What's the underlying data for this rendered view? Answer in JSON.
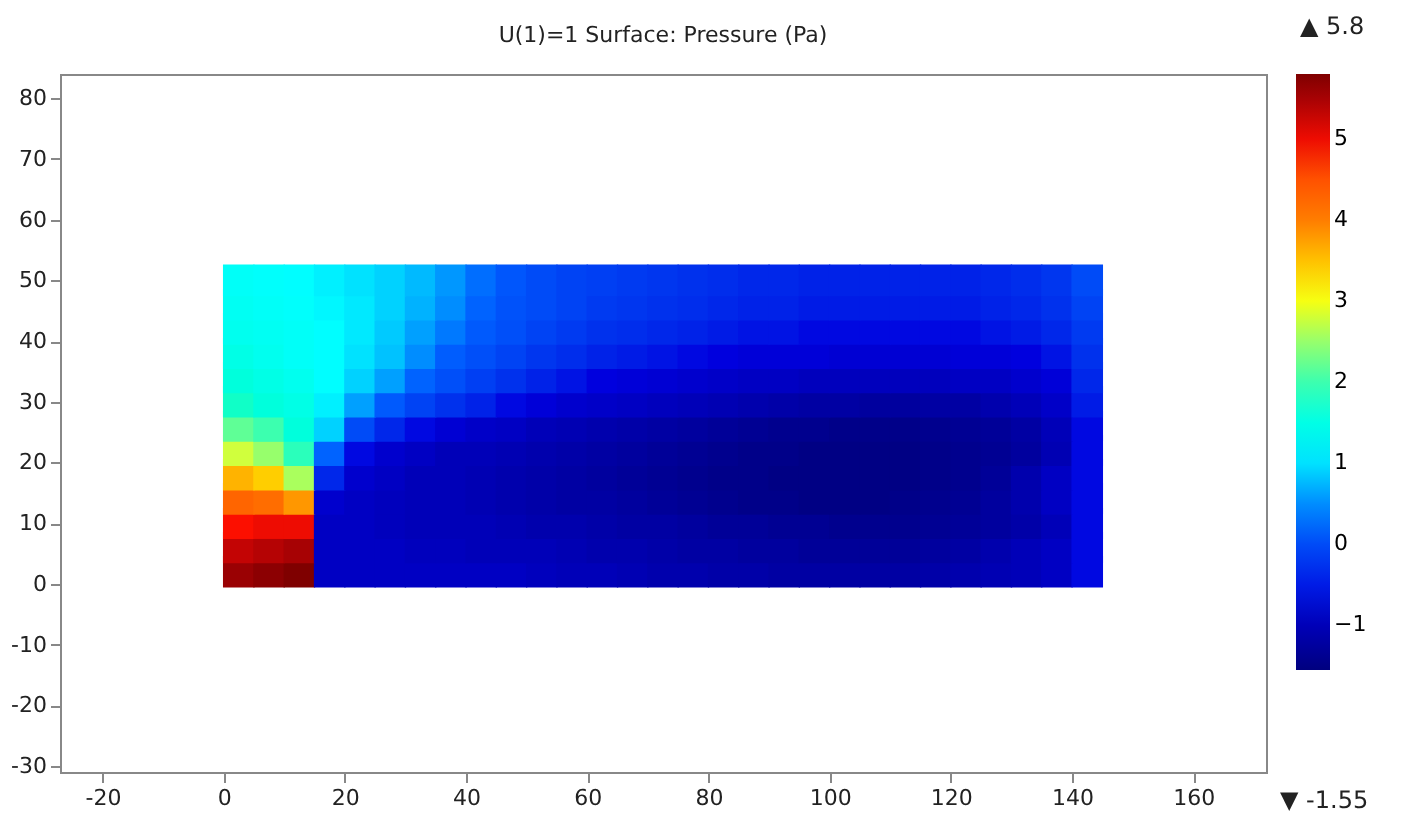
{
  "chart_data": {
    "type": "scatter",
    "title": "U(1)=1   Surface: Pressure (Pa)",
    "marker": "square",
    "grid": false,
    "xlim": [
      -27,
      172
    ],
    "xticks": [
      -20,
      0,
      20,
      40,
      60,
      80,
      100,
      120,
      140,
      160
    ],
    "ylim": [
      -31,
      84
    ],
    "yticks": [
      -30,
      -20,
      -10,
      0,
      10,
      20,
      30,
      40,
      50,
      60,
      70,
      80
    ],
    "clim": [
      -1.55,
      5.8
    ],
    "cticks": [
      -1,
      0,
      1,
      2,
      3,
      4,
      5
    ],
    "annotations": [
      "▲ 5.8",
      "▼ -1.55"
    ],
    "x": [
      2.5,
      7.5,
      12.5,
      17.5,
      22.5,
      27.5,
      32.5,
      37.5,
      42.5,
      47.5,
      52.5,
      57.5,
      62.5,
      67.5,
      72.5,
      77.5,
      82.5,
      87.5,
      92.5,
      97.5,
      102.5,
      107.5,
      112.5,
      117.5,
      122.5,
      127.5,
      132.5,
      137.5,
      142.5,
      2.5,
      7.5,
      12.5,
      17.5,
      22.5,
      27.5,
      32.5,
      37.5,
      42.5,
      47.5,
      52.5,
      57.5,
      62.5,
      67.5,
      72.5,
      77.5,
      82.5,
      87.5,
      92.5,
      97.5,
      102.5,
      107.5,
      112.5,
      117.5,
      122.5,
      127.5,
      132.5,
      137.5,
      142.5,
      2.5,
      7.5,
      12.5,
      17.5,
      22.5,
      27.5,
      32.5,
      37.5,
      42.5,
      47.5,
      52.5,
      57.5,
      62.5,
      67.5,
      72.5,
      77.5,
      82.5,
      87.5,
      92.5,
      97.5,
      102.5,
      107.5,
      112.5,
      117.5,
      122.5,
      127.5,
      132.5,
      137.5,
      142.5,
      2.5,
      7.5,
      12.5,
      17.5,
      22.5,
      27.5,
      32.5,
      37.5,
      42.5,
      47.5,
      52.5,
      57.5,
      62.5,
      67.5,
      72.5,
      77.5,
      82.5,
      87.5,
      92.5,
      97.5,
      102.5,
      107.5,
      112.5,
      117.5,
      122.5,
      127.5,
      132.5,
      137.5,
      142.5,
      2.5,
      7.5,
      12.5,
      17.5,
      22.5,
      27.5,
      32.5,
      37.5,
      42.5,
      47.5,
      52.5,
      57.5,
      62.5,
      67.5,
      72.5,
      77.5,
      82.5,
      87.5,
      92.5,
      97.5,
      102.5,
      107.5,
      112.5,
      117.5,
      122.5,
      127.5,
      132.5,
      137.5,
      142.5,
      2.5,
      7.5,
      12.5,
      17.5,
      22.5,
      27.5,
      32.5,
      37.5,
      42.5,
      47.5,
      52.5,
      57.5,
      62.5,
      67.5,
      72.5,
      77.5,
      82.5,
      87.5,
      92.5,
      97.5,
      102.5,
      107.5,
      112.5,
      117.5,
      122.5,
      127.5,
      132.5,
      137.5,
      142.5,
      2.5,
      7.5,
      12.5,
      17.5,
      22.5,
      27.5,
      32.5,
      37.5,
      42.5,
      47.5,
      52.5,
      57.5,
      62.5,
      67.5,
      72.5,
      77.5,
      82.5,
      87.5,
      92.5,
      97.5,
      102.5,
      107.5,
      112.5,
      117.5,
      122.5,
      127.5,
      132.5,
      137.5,
      142.5,
      2.5,
      7.5,
      12.5,
      17.5,
      22.5,
      27.5,
      32.5,
      37.5,
      42.5,
      47.5,
      52.5,
      57.5,
      62.5,
      67.5,
      72.5,
      77.5,
      82.5,
      87.5,
      92.5,
      97.5,
      102.5,
      107.5,
      112.5,
      117.5,
      122.5,
      127.5,
      132.5,
      137.5,
      142.5,
      2.5,
      7.5,
      12.5,
      17.5,
      22.5,
      27.5,
      32.5,
      37.5,
      42.5,
      47.5,
      52.5,
      57.5,
      62.5,
      67.5,
      72.5,
      77.5,
      82.5,
      87.5,
      92.5,
      97.5,
      102.5,
      107.5,
      112.5,
      117.5,
      122.5,
      127.5,
      132.5,
      137.5,
      142.5,
      2.5,
      7.5,
      12.5,
      17.5,
      22.5,
      27.5,
      32.5,
      37.5,
      42.5,
      47.5,
      52.5,
      57.5,
      62.5,
      67.5,
      72.5,
      77.5,
      82.5,
      87.5,
      92.5,
      97.5,
      102.5,
      107.5,
      112.5,
      117.5,
      122.5,
      127.5,
      132.5,
      137.5,
      142.5,
      2.5,
      7.5,
      12.5,
      17.5,
      22.5,
      27.5,
      32.5,
      37.5,
      42.5,
      47.5,
      52.5,
      57.5,
      62.5,
      67.5,
      72.5,
      77.5,
      82.5,
      87.5,
      92.5,
      97.5,
      102.5,
      107.5,
      112.5,
      117.5,
      122.5,
      127.5,
      132.5,
      137.5,
      142.5,
      2.5,
      7.5,
      12.5,
      17.5,
      22.5,
      27.5,
      32.5,
      37.5,
      42.5,
      47.5,
      52.5,
      57.5,
      62.5,
      67.5,
      72.5,
      77.5,
      82.5,
      87.5,
      92.5,
      97.5,
      102.5,
      107.5,
      112.5,
      117.5,
      122.5,
      127.5,
      132.5,
      137.5,
      142.5,
      2.5,
      7.5,
      12.5,
      17.5,
      22.5,
      27.5,
      32.5,
      37.5,
      42.5,
      47.5,
      52.5,
      57.5,
      62.5,
      67.5,
      72.5,
      77.5,
      82.5,
      87.5,
      92.5,
      97.5,
      102.5,
      107.5,
      112.5,
      117.5,
      122.5,
      127.5,
      132.5,
      137.5,
      142.5
    ],
    "values": [
      2,
      2,
      2,
      2,
      2,
      2,
      2,
      2,
      2,
      2,
      2,
      2,
      2,
      2,
      2,
      2,
      2,
      2,
      2,
      2,
      2,
      2,
      2,
      2,
      2,
      2,
      2,
      2,
      2,
      6,
      6,
      6,
      6,
      6,
      6,
      6,
      6,
      6,
      6,
      6,
      6,
      6,
      6,
      6,
      6,
      6,
      6,
      6,
      6,
      6,
      6,
      6,
      6,
      6,
      6,
      6,
      6,
      6,
      10,
      10,
      10,
      10,
      10,
      10,
      10,
      10,
      10,
      10,
      10,
      10,
      10,
      10,
      10,
      10,
      10,
      10,
      10,
      10,
      10,
      10,
      10,
      10,
      10,
      10,
      10,
      10,
      10,
      14,
      14,
      14,
      14,
      14,
      14,
      14,
      14,
      14,
      14,
      14,
      14,
      14,
      14,
      14,
      14,
      14,
      14,
      14,
      14,
      14,
      14,
      14,
      14,
      14,
      14,
      14,
      14,
      14,
      18,
      18,
      18,
      18,
      18,
      18,
      18,
      18,
      18,
      18,
      18,
      18,
      18,
      18,
      18,
      18,
      18,
      18,
      18,
      18,
      18,
      18,
      18,
      18,
      18,
      18,
      18,
      18,
      18,
      22,
      22,
      22,
      22,
      22,
      22,
      22,
      22,
      22,
      22,
      22,
      22,
      22,
      22,
      22,
      22,
      22,
      22,
      22,
      22,
      22,
      22,
      22,
      22,
      22,
      22,
      22,
      22,
      22,
      26,
      26,
      26,
      26,
      26,
      26,
      26,
      26,
      26,
      26,
      26,
      26,
      26,
      26,
      26,
      26,
      26,
      26,
      26,
      26,
      26,
      26,
      26,
      26,
      26,
      26,
      26,
      26,
      26,
      30,
      30,
      30,
      30,
      30,
      30,
      30,
      30,
      30,
      30,
      30,
      30,
      30,
      30,
      30,
      30,
      30,
      30,
      30,
      30,
      30,
      30,
      30,
      30,
      30,
      30,
      30,
      30,
      30,
      34,
      34,
      34,
      34,
      34,
      34,
      34,
      34,
      34,
      34,
      34,
      34,
      34,
      34,
      34,
      34,
      34,
      34,
      34,
      34,
      34,
      34,
      34,
      34,
      34,
      34,
      34,
      34,
      34,
      38,
      38,
      38,
      38,
      38,
      38,
      38,
      38,
      38,
      38,
      38,
      38,
      38,
      38,
      38,
      38,
      38,
      38,
      38,
      38,
      38,
      38,
      38,
      38,
      38,
      38,
      38,
      38,
      38,
      42,
      42,
      42,
      42,
      42,
      42,
      42,
      42,
      42,
      42,
      42,
      42,
      42,
      42,
      42,
      42,
      42,
      42,
      42,
      42,
      42,
      42,
      42,
      42,
      42,
      42,
      42,
      42,
      42,
      46,
      46,
      46,
      46,
      46,
      46,
      46,
      46,
      46,
      46,
      46,
      46,
      46,
      46,
      46,
      46,
      46,
      46,
      46,
      46,
      46,
      46,
      46,
      46,
      46,
      46,
      46,
      46,
      46,
      50,
      50,
      50,
      50,
      50,
      50,
      50,
      50,
      50,
      50,
      50,
      50,
      50,
      50,
      50,
      50,
      50,
      50,
      50,
      50,
      50,
      50,
      50,
      50,
      50,
      50,
      50,
      50,
      50
    ],
    "cvalues": [
      5.6,
      5.7,
      5.8,
      -0.9,
      -0.9,
      -0.9,
      -0.9,
      -0.9,
      -0.9,
      -0.9,
      -0.95,
      -1.0,
      -1.0,
      -1.05,
      -1.1,
      -1.1,
      -1.15,
      -1.15,
      -1.2,
      -1.2,
      -1.2,
      -1.2,
      -1.2,
      -1.15,
      -1.1,
      -1.05,
      -1.0,
      -0.9,
      -0.6,
      5.3,
      5.4,
      5.5,
      -0.9,
      -0.9,
      -0.9,
      -0.95,
      -0.95,
      -1.0,
      -1.0,
      -1.0,
      -1.05,
      -1.1,
      -1.1,
      -1.15,
      -1.2,
      -1.2,
      -1.25,
      -1.25,
      -1.3,
      -1.3,
      -1.3,
      -1.3,
      -1.25,
      -1.2,
      -1.1,
      -1.0,
      -0.9,
      -0.6,
      4.9,
      5.0,
      5.0,
      -0.9,
      -0.9,
      -0.95,
      -1.0,
      -1.0,
      -1.0,
      -1.05,
      -1.1,
      -1.1,
      -1.15,
      -1.2,
      -1.2,
      -1.25,
      -1.3,
      -1.3,
      -1.35,
      -1.35,
      -1.4,
      -1.4,
      -1.4,
      -1.35,
      -1.3,
      -1.25,
      -1.15,
      -1.0,
      -0.6,
      4.3,
      4.2,
      3.8,
      -0.8,
      -0.9,
      -0.95,
      -1.0,
      -1.0,
      -1.05,
      -1.1,
      -1.15,
      -1.2,
      -1.2,
      -1.25,
      -1.3,
      -1.35,
      -1.4,
      -1.45,
      -1.45,
      -1.5,
      -1.5,
      -1.5,
      -1.45,
      -1.4,
      -1.35,
      -1.25,
      -1.1,
      -0.9,
      -0.6,
      3.6,
      3.4,
      2.6,
      -0.4,
      -0.8,
      -0.9,
      -1.0,
      -1.0,
      -1.05,
      -1.1,
      -1.15,
      -1.2,
      -1.25,
      -1.3,
      -1.35,
      -1.4,
      -1.45,
      -1.45,
      -1.5,
      -1.5,
      -1.5,
      -1.5,
      -1.5,
      -1.45,
      -1.4,
      -1.3,
      -1.1,
      -0.9,
      -0.6,
      2.8,
      2.5,
      1.9,
      0.3,
      -0.6,
      -0.8,
      -0.9,
      -1.0,
      -1.0,
      -1.05,
      -1.1,
      -1.15,
      -1.2,
      -1.25,
      -1.3,
      -1.35,
      -1.4,
      -1.45,
      -1.45,
      -1.5,
      -1.5,
      -1.5,
      -1.5,
      -1.45,
      -1.4,
      -1.35,
      -1.25,
      -1.05,
      -0.6,
      2.2,
      2.0,
      1.6,
      0.9,
      0.0,
      -0.4,
      -0.6,
      -0.75,
      -0.85,
      -0.9,
      -1.0,
      -1.05,
      -1.1,
      -1.15,
      -1.2,
      -1.25,
      -1.3,
      -1.35,
      -1.4,
      -1.4,
      -1.45,
      -1.45,
      -1.45,
      -1.4,
      -1.35,
      -1.3,
      -1.2,
      -1.0,
      -0.6,
      1.8,
      1.6,
      1.5,
      1.1,
      0.6,
      0.2,
      -0.1,
      -0.3,
      -0.45,
      -0.6,
      -0.7,
      -0.8,
      -0.85,
      -0.9,
      -0.95,
      -1.0,
      -1.05,
      -1.1,
      -1.15,
      -1.2,
      -1.2,
      -1.25,
      -1.25,
      -1.2,
      -1.2,
      -1.1,
      -1.0,
      -0.85,
      -0.5,
      1.6,
      1.5,
      1.4,
      1.2,
      0.9,
      0.6,
      0.3,
      0.05,
      -0.15,
      -0.3,
      -0.45,
      -0.55,
      -0.65,
      -0.7,
      -0.75,
      -0.8,
      -0.85,
      -0.9,
      -0.9,
      -0.95,
      -0.95,
      -0.95,
      -0.95,
      -0.95,
      -0.9,
      -0.9,
      -0.8,
      -0.7,
      -0.4,
      1.5,
      1.4,
      1.3,
      1.2,
      1.0,
      0.8,
      0.5,
      0.25,
      0.05,
      -0.1,
      -0.25,
      -0.35,
      -0.45,
      -0.5,
      -0.55,
      -0.6,
      -0.65,
      -0.7,
      -0.7,
      -0.7,
      -0.75,
      -0.75,
      -0.75,
      -0.75,
      -0.7,
      -0.7,
      -0.65,
      -0.55,
      -0.3,
      1.4,
      1.35,
      1.3,
      1.2,
      1.05,
      0.85,
      0.6,
      0.4,
      0.2,
      0.05,
      -0.1,
      -0.2,
      -0.3,
      -0.35,
      -0.4,
      -0.45,
      -0.5,
      -0.55,
      -0.55,
      -0.6,
      -0.6,
      -0.6,
      -0.6,
      -0.6,
      -0.6,
      -0.55,
      -0.5,
      -0.4,
      -0.2,
      1.35,
      1.3,
      1.25,
      1.15,
      1.05,
      0.9,
      0.7,
      0.5,
      0.3,
      0.1,
      0.0,
      -0.1,
      -0.2,
      -0.25,
      -0.3,
      -0.35,
      -0.4,
      -0.45,
      -0.45,
      -0.5,
      -0.5,
      -0.5,
      -0.5,
      -0.5,
      -0.5,
      -0.45,
      -0.4,
      -0.3,
      -0.1,
      1.3,
      1.25,
      1.2,
      1.1,
      1.0,
      0.9,
      0.75,
      0.55,
      0.35,
      0.15,
      0.0,
      -0.1,
      -0.15,
      -0.2,
      -0.25,
      -0.3,
      -0.35,
      -0.4,
      -0.4,
      -0.45,
      -0.45,
      -0.45,
      -0.45,
      -0.45,
      -0.45,
      -0.4,
      -0.35,
      -0.25,
      0.0
    ]
  }
}
